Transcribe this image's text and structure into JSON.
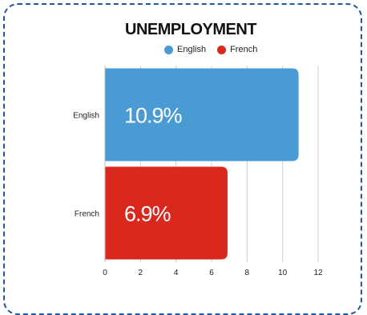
{
  "chart_data": {
    "type": "bar",
    "orientation": "horizontal",
    "title": "UNEMPLOYMENT",
    "categories": [
      "English",
      "French"
    ],
    "values": [
      10.9,
      6.9
    ],
    "data_labels": [
      "10.9%",
      "6.9%"
    ],
    "colors": [
      "#4a9ad4",
      "#d9291e"
    ],
    "legend": [
      "English",
      "French"
    ],
    "legend_placement": "top",
    "xlim": [
      0,
      12
    ],
    "xticks": [
      "0",
      "2",
      "4",
      "6",
      "8",
      "10",
      "12"
    ],
    "grid": true
  }
}
